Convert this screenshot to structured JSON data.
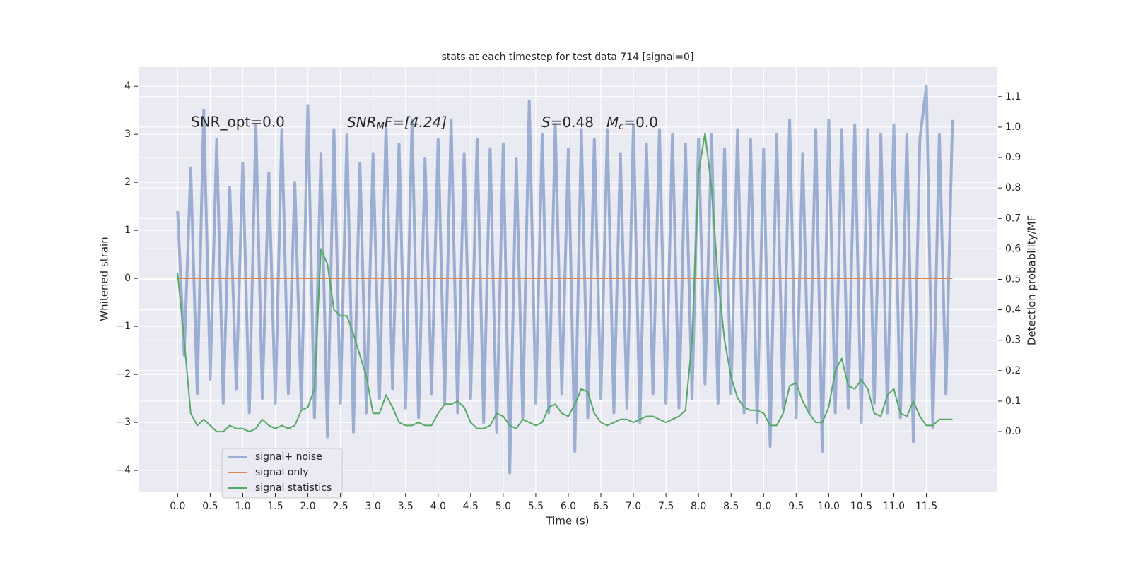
{
  "chart_data": {
    "type": "line",
    "title": "stats at each timestep for test data 714 [signal=0]",
    "xlabel": "Time (s)",
    "ylabel": "Whitened strain",
    "y2label": "Detection probability/MF",
    "annotations": [
      [
        "SNR_opt=0.0"
      ],
      [
        "SNR",
        "M",
        "F=[4.24]"
      ],
      [
        "S",
        "=0.48"
      ],
      [
        "M",
        "c",
        "=0.0"
      ]
    ],
    "grid": true,
    "legend": "lower left",
    "xlim": [
      -0.59,
      12.58
    ],
    "ylim": [
      -4.44,
      4.4
    ],
    "y2lim": [
      -0.197,
      1.197
    ],
    "xticks": [
      {
        "value": 0,
        "label": "0.0"
      },
      {
        "value": 0.5,
        "label": "0.5"
      },
      {
        "value": 1,
        "label": "1.0"
      },
      {
        "value": 1.5,
        "label": "1.5"
      },
      {
        "value": 2,
        "label": "2.0"
      },
      {
        "value": 2.5,
        "label": "2.5"
      },
      {
        "value": 3,
        "label": "3.0"
      },
      {
        "value": 3.5,
        "label": "3.5"
      },
      {
        "value": 4,
        "label": "4.0"
      },
      {
        "value": 4.5,
        "label": "4.5"
      },
      {
        "value": 5,
        "label": "5.0"
      },
      {
        "value": 5.5,
        "label": "5.5"
      },
      {
        "value": 6,
        "label": "6.0"
      },
      {
        "value": 6.5,
        "label": "6.5"
      },
      {
        "value": 7,
        "label": "7.0"
      },
      {
        "value": 7.5,
        "label": "7.5"
      },
      {
        "value": 8,
        "label": "8.0"
      },
      {
        "value": 8.5,
        "label": "8.5"
      },
      {
        "value": 9,
        "label": "9.0"
      },
      {
        "value": 9.5,
        "label": "9.5"
      },
      {
        "value": 10,
        "label": "10.0"
      },
      {
        "value": 10.5,
        "label": "10.5"
      },
      {
        "value": 11,
        "label": "11.0"
      },
      {
        "value": 11.5,
        "label": "11.5"
      }
    ],
    "yticks": [
      {
        "value": -4,
        "label": "−4"
      },
      {
        "value": -3,
        "label": "−3"
      },
      {
        "value": -2,
        "label": "−2"
      },
      {
        "value": -1,
        "label": "−1"
      },
      0,
      1,
      2,
      3,
      4
    ],
    "y2ticks": [
      {
        "value": 0,
        "label": "0.0"
      },
      {
        "value": 0.1,
        "label": "0.1"
      },
      {
        "value": 0.2,
        "label": "0.2"
      },
      {
        "value": 0.3,
        "label": "0.3"
      },
      {
        "value": 0.4,
        "label": "0.4"
      },
      {
        "value": 0.5,
        "label": "0.5"
      },
      {
        "value": 0.6,
        "label": "0.6"
      },
      {
        "value": 0.7,
        "label": "0.7"
      },
      {
        "value": 0.8,
        "label": "0.8"
      },
      {
        "value": 0.9,
        "label": "0.9"
      },
      {
        "value": 1,
        "label": "1.0"
      },
      {
        "value": 1.1,
        "label": "1.1"
      }
    ],
    "x": [
      0,
      0.1,
      0.2,
      0.3,
      0.4,
      0.5,
      0.6,
      0.7,
      0.8,
      0.9,
      1,
      1.1,
      1.2,
      1.3,
      1.4,
      1.5,
      1.6,
      1.7,
      1.8,
      1.9,
      2,
      2.1,
      2.2,
      2.3,
      2.4,
      2.5,
      2.6,
      2.7,
      2.8,
      2.9,
      3,
      3.1,
      3.2,
      3.3,
      3.4,
      3.5,
      3.6,
      3.7,
      3.8,
      3.9,
      4,
      4.1,
      4.2,
      4.3,
      4.4,
      4.5,
      4.6,
      4.7,
      4.8,
      4.9,
      5,
      5.1,
      5.2,
      5.3,
      5.4,
      5.5,
      5.6,
      5.7,
      5.8,
      5.9,
      6,
      6.1,
      6.2,
      6.3,
      6.4,
      6.5,
      6.6,
      6.7,
      6.8,
      6.9,
      7,
      7.1,
      7.2,
      7.3,
      7.4,
      7.5,
      7.6,
      7.7,
      7.8,
      7.9,
      8,
      8.1,
      8.2,
      8.3,
      8.4,
      8.5,
      8.6,
      8.7,
      8.8,
      8.9,
      9,
      9.1,
      9.2,
      9.3,
      9.4,
      9.5,
      9.6,
      9.7,
      9.8,
      9.9,
      10,
      10.1,
      10.2,
      10.3,
      10.4,
      10.5,
      10.6,
      10.7,
      10.8,
      10.9,
      11,
      11.1,
      11.2,
      11.3,
      11.4,
      11.5,
      11.6,
      11.7,
      11.8,
      11.9
    ],
    "series": [
      {
        "name": "signal+ noise",
        "color": "#4c72b0",
        "alpha": 0.5,
        "values": [
          1.4,
          -1.6,
          2.3,
          -2.4,
          3.5,
          -2.1,
          2.9,
          -2.6,
          1.9,
          -2.3,
          2.4,
          -2.8,
          3.2,
          -2.5,
          2.2,
          -2.6,
          3.1,
          -2.4,
          2.0,
          -2.7,
          3.6,
          -2.9,
          2.6,
          -3.3,
          3.1,
          -2.6,
          3.0,
          -3.2,
          2.4,
          -2.8,
          2.6,
          -2.5,
          3.2,
          -2.3,
          2.8,
          -2.7,
          3.3,
          -2.9,
          2.5,
          -2.4,
          2.9,
          -2.6,
          3.3,
          -2.8,
          2.6,
          -2.5,
          2.9,
          -3.0,
          2.7,
          -3.2,
          2.8,
          -4.05,
          2.5,
          -2.9,
          3.7,
          -2.6,
          3.0,
          -2.8,
          3.2,
          -2.4,
          2.7,
          -3.6,
          3.1,
          -2.9,
          2.9,
          -2.5,
          3.1,
          -2.8,
          2.6,
          -2.7,
          3.2,
          -3.0,
          2.8,
          -2.4,
          3.1,
          -2.6,
          3.0,
          -2.7,
          2.8,
          -2.5,
          2.9,
          -2.2,
          3.0,
          -2.6,
          2.7,
          -2.4,
          3.1,
          -2.8,
          2.9,
          -3.0,
          2.7,
          -3.5,
          3.0,
          -2.7,
          3.3,
          -2.9,
          2.6,
          -2.8,
          3.1,
          -3.6,
          3.3,
          -2.8,
          3.1,
          -2.7,
          3.2,
          -3.0,
          3.1,
          -2.6,
          3.0,
          -2.8,
          3.2,
          -2.9,
          3.0,
          -3.4,
          2.9,
          4.0,
          -3.1,
          3.0,
          -2.4,
          3.3
        ]
      },
      {
        "name": "signal only",
        "color": "#dd8452",
        "alpha": 1,
        "values": [
          0,
          0,
          0,
          0,
          0,
          0,
          0,
          0,
          0,
          0,
          0,
          0,
          0,
          0,
          0,
          0,
          0,
          0,
          0,
          0,
          0,
          0,
          0,
          0,
          0,
          0,
          0,
          0,
          0,
          0,
          0,
          0,
          0,
          0,
          0,
          0,
          0,
          0,
          0,
          0,
          0,
          0,
          0,
          0,
          0,
          0,
          0,
          0,
          0,
          0,
          0,
          0,
          0,
          0,
          0,
          0,
          0,
          0,
          0,
          0,
          0,
          0,
          0,
          0,
          0,
          0,
          0,
          0,
          0,
          0,
          0,
          0,
          0,
          0,
          0,
          0,
          0,
          0,
          0,
          0,
          0,
          0,
          0,
          0,
          0,
          0,
          0,
          0,
          0,
          0,
          0,
          0,
          0,
          0,
          0,
          0,
          0,
          0,
          0,
          0,
          0,
          0,
          0,
          0,
          0,
          0,
          0,
          0,
          0,
          0,
          0,
          0,
          0,
          0,
          0,
          0,
          0,
          0,
          0,
          0
        ]
      },
      {
        "name": "signal statistics",
        "color": "#55a868",
        "alpha": 1,
        "axis": "y2",
        "values": [
          0.52,
          0.3,
          0.06,
          0.02,
          0.04,
          0.02,
          0.0,
          0.0,
          0.02,
          0.01,
          0.01,
          0.0,
          0.01,
          0.04,
          0.02,
          0.01,
          0.02,
          0.01,
          0.02,
          0.07,
          0.08,
          0.14,
          0.6,
          0.55,
          0.4,
          0.38,
          0.38,
          0.32,
          0.25,
          0.18,
          0.06,
          0.06,
          0.12,
          0.08,
          0.03,
          0.02,
          0.02,
          0.03,
          0.02,
          0.02,
          0.06,
          0.09,
          0.09,
          0.1,
          0.08,
          0.03,
          0.01,
          0.01,
          0.02,
          0.06,
          0.05,
          0.02,
          0.01,
          0.04,
          0.03,
          0.02,
          0.03,
          0.08,
          0.09,
          0.06,
          0.05,
          0.09,
          0.14,
          0.13,
          0.06,
          0.03,
          0.02,
          0.03,
          0.04,
          0.04,
          0.03,
          0.04,
          0.05,
          0.05,
          0.04,
          0.03,
          0.04,
          0.05,
          0.07,
          0.3,
          0.85,
          0.98,
          0.8,
          0.5,
          0.3,
          0.18,
          0.11,
          0.08,
          0.07,
          0.07,
          0.06,
          0.02,
          0.02,
          0.06,
          0.15,
          0.16,
          0.1,
          0.06,
          0.03,
          0.03,
          0.08,
          0.2,
          0.24,
          0.15,
          0.14,
          0.17,
          0.14,
          0.06,
          0.05,
          0.12,
          0.14,
          0.06,
          0.05,
          0.1,
          0.05,
          0.02,
          0.02,
          0.04,
          0.04,
          0.04
        ]
      }
    ]
  }
}
